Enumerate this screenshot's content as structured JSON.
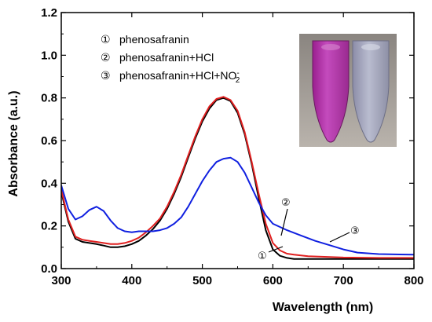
{
  "chart_data": {
    "type": "line",
    "xlabel": "Wavelength (nm)",
    "ylabel": "Absorbance (a.u.)",
    "xlim": [
      300,
      800
    ],
    "ylim": [
      0.0,
      1.2
    ],
    "x_ticks": [
      "300",
      "400",
      "500",
      "600",
      "700",
      "800"
    ],
    "y_ticks": [
      "0.0",
      "0.2",
      "0.4",
      "0.6",
      "0.8",
      "1.0",
      "1.2"
    ],
    "grid": false,
    "legend_position": "top-left",
    "legend": [
      {
        "marker": "①",
        "label": "phenosafranin",
        "sup": ""
      },
      {
        "marker": "②",
        "label": "phenosafranin+HCl",
        "sup": ""
      },
      {
        "marker": "③",
        "label": "phenosafranin+HCl+NO",
        "sup": "-",
        "sub": "2"
      }
    ],
    "annotations": [
      "①",
      "②",
      "③"
    ],
    "inset": "photo of two sample tubes: magenta (left) and pale grey-blue (right)",
    "series": [
      {
        "marker": "①",
        "color": "#000000",
        "x": [
          300,
          310,
          320,
          330,
          340,
          350,
          360,
          370,
          380,
          390,
          400,
          410,
          420,
          430,
          440,
          450,
          460,
          470,
          480,
          490,
          500,
          510,
          520,
          530,
          540,
          550,
          560,
          570,
          580,
          590,
          600,
          610,
          620,
          630,
          650,
          700,
          750,
          800
        ],
        "y": [
          0.36,
          0.22,
          0.14,
          0.125,
          0.12,
          0.115,
          0.108,
          0.1,
          0.1,
          0.105,
          0.115,
          0.13,
          0.155,
          0.185,
          0.225,
          0.28,
          0.35,
          0.43,
          0.52,
          0.61,
          0.69,
          0.75,
          0.79,
          0.8,
          0.785,
          0.73,
          0.63,
          0.49,
          0.33,
          0.18,
          0.09,
          0.06,
          0.05,
          0.045,
          0.045,
          0.045,
          0.045,
          0.045
        ]
      },
      {
        "marker": "②",
        "color": "#e02020",
        "x": [
          300,
          310,
          320,
          330,
          340,
          350,
          360,
          370,
          380,
          390,
          400,
          410,
          420,
          430,
          440,
          450,
          460,
          470,
          480,
          490,
          500,
          510,
          520,
          530,
          540,
          550,
          560,
          570,
          580,
          590,
          600,
          610,
          620,
          630,
          650,
          700,
          750,
          800
        ],
        "y": [
          0.37,
          0.23,
          0.15,
          0.135,
          0.13,
          0.125,
          0.12,
          0.115,
          0.115,
          0.12,
          0.13,
          0.145,
          0.17,
          0.2,
          0.235,
          0.29,
          0.36,
          0.44,
          0.53,
          0.62,
          0.7,
          0.76,
          0.795,
          0.805,
          0.79,
          0.74,
          0.64,
          0.5,
          0.35,
          0.21,
          0.12,
          0.085,
          0.07,
          0.065,
          0.058,
          0.052,
          0.05,
          0.05
        ]
      },
      {
        "marker": "③",
        "color": "#1020e0",
        "x": [
          300,
          310,
          320,
          330,
          340,
          350,
          360,
          370,
          380,
          390,
          400,
          410,
          420,
          430,
          440,
          450,
          460,
          470,
          480,
          490,
          500,
          510,
          520,
          530,
          540,
          550,
          560,
          570,
          580,
          590,
          600,
          620,
          640,
          660,
          680,
          700,
          720,
          750,
          800
        ],
        "y": [
          0.39,
          0.28,
          0.23,
          0.245,
          0.275,
          0.29,
          0.27,
          0.225,
          0.19,
          0.175,
          0.17,
          0.175,
          0.175,
          0.175,
          0.18,
          0.19,
          0.21,
          0.24,
          0.29,
          0.35,
          0.41,
          0.46,
          0.5,
          0.515,
          0.52,
          0.5,
          0.45,
          0.38,
          0.31,
          0.25,
          0.21,
          0.18,
          0.155,
          0.13,
          0.11,
          0.09,
          0.075,
          0.068,
          0.065
        ]
      }
    ]
  }
}
